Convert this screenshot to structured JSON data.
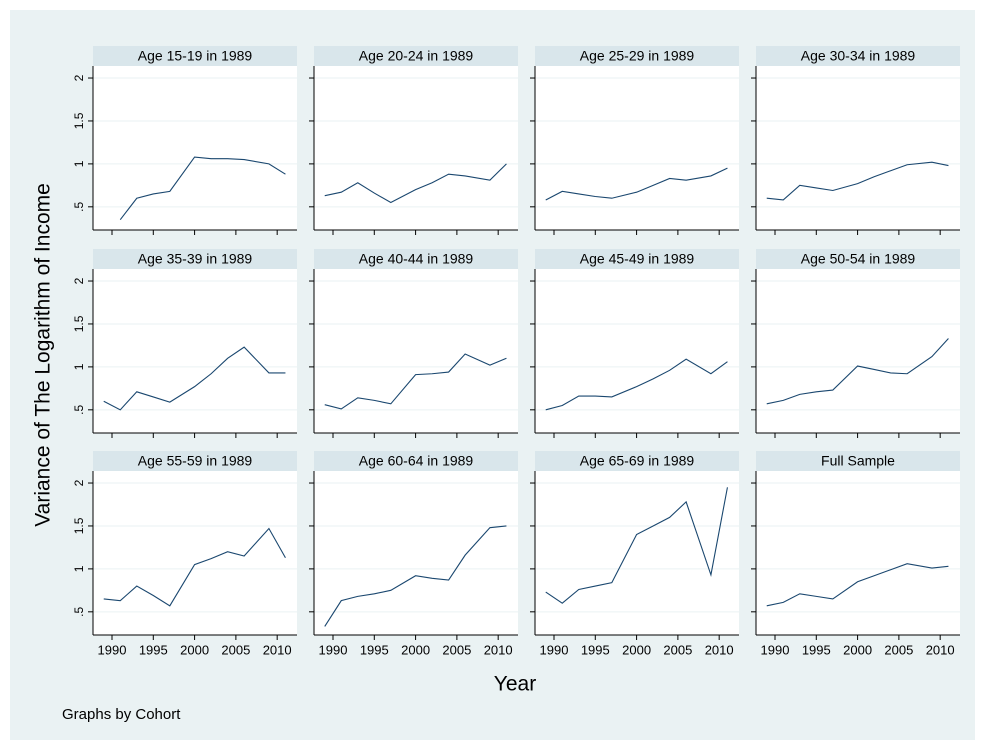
{
  "chart_data": {
    "type": "line",
    "y_label": "Variance of The Logarithm of Income",
    "x_label": "Year",
    "note": "Graphs by Cohort",
    "x": [
      1989,
      1991,
      1993,
      1995,
      1997,
      2000,
      2002,
      2004,
      2006,
      2009,
      2011
    ],
    "xlim": [
      1987.7,
      2012.4
    ],
    "xticks": [
      1990,
      1995,
      2000,
      2005,
      2010
    ],
    "ylim": [
      0.23,
      2.14
    ],
    "yticks": [
      {
        "value": 0.5,
        "label": ".5"
      },
      1,
      1.5,
      2
    ],
    "grid": true,
    "series": [
      {
        "name": "Age 15-19 in 1989",
        "color": "#1a476f",
        "values": [
          null,
          0.35,
          0.6,
          0.65,
          0.68,
          1.08,
          1.06,
          1.06,
          1.05,
          1.0,
          0.88
        ]
      },
      {
        "name": "Age 20-24 in 1989",
        "color": "#1a476f",
        "values": [
          0.63,
          0.67,
          0.78,
          0.66,
          0.55,
          0.7,
          0.78,
          0.88,
          0.86,
          0.81,
          1.0
        ]
      },
      {
        "name": "Age 25-29 in 1989",
        "color": "#1a476f",
        "values": [
          0.58,
          0.68,
          0.65,
          0.62,
          0.6,
          0.67,
          0.75,
          0.83,
          0.81,
          0.86,
          0.95
        ]
      },
      {
        "name": "Age 30-34 in 1989",
        "color": "#1a476f",
        "values": [
          0.6,
          0.58,
          0.75,
          0.72,
          0.69,
          0.77,
          0.85,
          0.92,
          0.99,
          1.02,
          0.98
        ]
      },
      {
        "name": "Age 35-39 in 1989",
        "color": "#1a476f",
        "values": [
          0.6,
          0.5,
          0.71,
          0.65,
          0.59,
          0.77,
          0.92,
          1.1,
          1.23,
          0.93,
          0.93
        ]
      },
      {
        "name": "Age 40-44 in 1989",
        "color": "#1a476f",
        "values": [
          0.56,
          0.51,
          0.64,
          0.61,
          0.57,
          0.91,
          0.92,
          0.94,
          1.15,
          1.02,
          1.1
        ]
      },
      {
        "name": "Age 45-49 in 1989",
        "color": "#1a476f",
        "values": [
          0.5,
          0.55,
          0.66,
          0.66,
          0.65,
          0.77,
          0.86,
          0.96,
          1.09,
          0.92,
          1.06
        ]
      },
      {
        "name": "Age 50-54 in 1989",
        "color": "#1a476f",
        "values": [
          0.57,
          0.61,
          0.68,
          0.71,
          0.73,
          1.01,
          0.97,
          0.93,
          0.92,
          1.12,
          1.33
        ]
      },
      {
        "name": "Age 55-59 in 1989",
        "color": "#1a476f",
        "values": [
          0.65,
          0.63,
          0.8,
          0.69,
          0.57,
          1.05,
          1.12,
          1.2,
          1.15,
          1.47,
          1.13
        ]
      },
      {
        "name": "Age 60-64 in 1989",
        "color": "#1a476f",
        "values": [
          0.33,
          0.63,
          0.68,
          0.71,
          0.75,
          0.92,
          0.89,
          0.87,
          1.16,
          1.48,
          1.5
        ]
      },
      {
        "name": "Age 65-69 in 1989",
        "color": "#1a476f",
        "values": [
          0.73,
          0.6,
          0.76,
          0.8,
          0.84,
          1.4,
          1.5,
          1.6,
          1.78,
          0.93,
          1.95
        ]
      },
      {
        "name": "Full Sample",
        "color": "#1a476f",
        "values": [
          0.57,
          0.61,
          0.71,
          0.68,
          0.65,
          0.85,
          0.92,
          0.99,
          1.06,
          1.01,
          1.03
        ]
      }
    ]
  }
}
